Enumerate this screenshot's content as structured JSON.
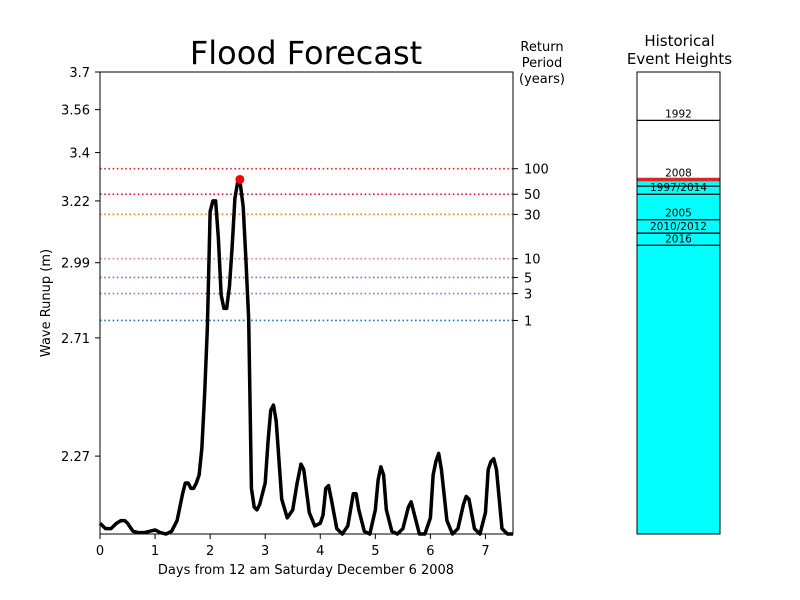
{
  "chart_data": [
    {
      "type": "line",
      "title": "Flood Forecast",
      "xlabel": "Days from 12 am Saturday December 6 2008",
      "ylabel": "Wave Runup (m)",
      "xlim": [
        0,
        7.5
      ],
      "ylim": [
        1.98,
        3.7
      ],
      "x_ticks": [
        0,
        1,
        2,
        3,
        4,
        5,
        6,
        7
      ],
      "y_ticks": [
        2.27,
        2.71,
        2.99,
        3.22,
        3.4,
        3.56,
        3.7
      ],
      "y_tick_labels": [
        "2.27",
        "2.71",
        "2.99",
        "3.22",
        "3.4",
        "3.56",
        "3.7"
      ],
      "grid": false,
      "series": [
        {
          "color": "#000000",
          "x": [
            0,
            0.1,
            0.2,
            0.3,
            0.38,
            0.45,
            0.5,
            0.6,
            0.7,
            0.8,
            0.9,
            1.0,
            1.1,
            1.2,
            1.3,
            1.4,
            1.5,
            1.55,
            1.6,
            1.65,
            1.7,
            1.75,
            1.8,
            1.85,
            1.9,
            1.95,
            2.0,
            2.05,
            2.1,
            2.15,
            2.2,
            2.25,
            2.3,
            2.35,
            2.4,
            2.45,
            2.5,
            2.55,
            2.6,
            2.65,
            2.7,
            2.75,
            2.8,
            2.85,
            2.9,
            3.0,
            3.05,
            3.1,
            3.15,
            3.2,
            3.3,
            3.4,
            3.5,
            3.58,
            3.65,
            3.7,
            3.8,
            3.9,
            4.0,
            4.05,
            4.1,
            4.15,
            4.2,
            4.3,
            4.4,
            4.5,
            4.55,
            4.6,
            4.65,
            4.7,
            4.8,
            4.9,
            5.0,
            5.05,
            5.1,
            5.15,
            5.2,
            5.3,
            5.4,
            5.5,
            5.6,
            5.65,
            5.7,
            5.8,
            5.9,
            6.0,
            6.05,
            6.1,
            6.15,
            6.2,
            6.3,
            6.4,
            6.5,
            6.6,
            6.65,
            6.7,
            6.8,
            6.9,
            7.0,
            7.05,
            7.1,
            7.15,
            7.2,
            7.3,
            7.4,
            7.5
          ],
          "y": [
            2.02,
            2.0,
            2.0,
            2.02,
            2.03,
            2.03,
            2.02,
            1.99,
            1.985,
            1.985,
            1.99,
            1.995,
            1.985,
            1.98,
            1.99,
            2.03,
            2.13,
            2.17,
            2.17,
            2.15,
            2.15,
            2.17,
            2.2,
            2.3,
            2.5,
            2.75,
            3.18,
            3.22,
            3.22,
            3.08,
            2.87,
            2.82,
            2.82,
            2.9,
            3.05,
            3.23,
            3.29,
            3.28,
            3.2,
            3.0,
            2.78,
            2.15,
            2.08,
            2.07,
            2.09,
            2.17,
            2.32,
            2.44,
            2.46,
            2.4,
            2.11,
            2.04,
            2.07,
            2.17,
            2.24,
            2.22,
            2.06,
            2.01,
            2.02,
            2.05,
            2.15,
            2.16,
            2.11,
            2.0,
            1.98,
            2.01,
            2.07,
            2.13,
            2.13,
            2.07,
            1.99,
            1.98,
            2.07,
            2.18,
            2.23,
            2.2,
            2.07,
            1.99,
            1.98,
            2.0,
            2.08,
            2.1,
            2.06,
            1.98,
            1.98,
            2.04,
            2.2,
            2.25,
            2.28,
            2.22,
            2.03,
            1.98,
            2.0,
            2.09,
            2.12,
            2.11,
            2.0,
            1.98,
            2.06,
            2.22,
            2.25,
            2.26,
            2.22,
            2.0,
            1.98,
            1.98
          ]
        }
      ],
      "peak_marker": {
        "x": 2.54,
        "y": 3.3,
        "color": "#ff0000"
      },
      "return_period_axis_label": "Return Period (years)",
      "return_period_title_lines": [
        "Return",
        "Period",
        "(years)"
      ],
      "return_periods": [
        {
          "label": "100",
          "y": 3.34,
          "color": "#d62728"
        },
        {
          "label": "50",
          "y": 3.245,
          "color": "#e6194b"
        },
        {
          "label": "30",
          "y": 3.17,
          "color": "#ff7f0e"
        },
        {
          "label": "10",
          "y": 3.005,
          "color": "#e377c2"
        },
        {
          "label": "5",
          "y": 2.935,
          "color": "#9467bd"
        },
        {
          "label": "3",
          "y": 2.875,
          "color": "#a66cbf"
        },
        {
          "label": "1",
          "y": 2.775,
          "color": "#1f77b4"
        }
      ]
    },
    {
      "type": "bar",
      "title": "Historical Event Heights",
      "title_lines": [
        "Historical",
        "Event Heights"
      ],
      "ylim": [
        1.98,
        3.7
      ],
      "fill_color": "#00ffff",
      "fill_top": 3.3,
      "events": [
        {
          "label": "1992",
          "y": 3.52,
          "color": "#000000"
        },
        {
          "label": "2008",
          "y": 3.3,
          "color": "#d62728"
        },
        {
          "label": "1997/2014",
          "y": 3.245,
          "color": "#000000"
        },
        {
          "label": "2005",
          "y": 3.15,
          "color": "#000000"
        },
        {
          "label": "2010/2012",
          "y": 3.1,
          "color": "#000000"
        },
        {
          "label": "2016",
          "y": 3.055,
          "color": "#000000"
        }
      ],
      "extra_lines": [
        3.275
      ]
    }
  ]
}
